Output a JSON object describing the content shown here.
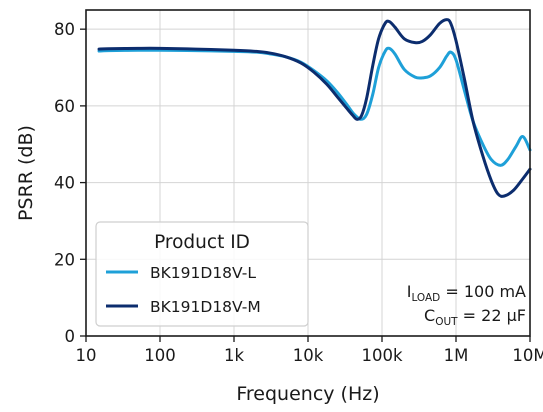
{
  "chart_data": {
    "type": "line",
    "xlabel": "Frequency (Hz)",
    "ylabel": "PSRR (dB)",
    "x_scale": "log",
    "xlim": [
      10,
      10000000
    ],
    "ylim": [
      0,
      85
    ],
    "x_ticks": [
      {
        "value": 10,
        "label": "10"
      },
      {
        "value": 100,
        "label": "100"
      },
      {
        "value": 1000,
        "label": "1k"
      },
      {
        "value": 10000,
        "label": "10k"
      },
      {
        "value": 100000,
        "label": "100k"
      },
      {
        "value": 1000000,
        "label": "1M"
      },
      {
        "value": 10000000,
        "label": "10M"
      }
    ],
    "y_ticks": [
      0,
      20,
      40,
      60,
      80
    ],
    "grid": true,
    "legend": {
      "title": "Product ID",
      "position": "bottom-left"
    },
    "annotations": {
      "load": {
        "main": "I",
        "sub": "LOAD",
        "rest": " = 100 mA"
      },
      "cout": {
        "main": "C",
        "sub": "OUT",
        "rest": " = 22 µF"
      }
    },
    "series": [
      {
        "name": "BK191D18V-L",
        "color": "#1ea0d8",
        "points": [
          [
            15,
            74.3
          ],
          [
            20,
            74.4
          ],
          [
            50,
            74.5
          ],
          [
            100,
            74.5
          ],
          [
            300,
            74.4
          ],
          [
            1000,
            74.2
          ],
          [
            2000,
            74.0
          ],
          [
            3000,
            73.6
          ],
          [
            5000,
            72.8
          ],
          [
            8000,
            71.4
          ],
          [
            12000,
            69.2
          ],
          [
            18000,
            66.5
          ],
          [
            25000,
            63.5
          ],
          [
            33000,
            60.5
          ],
          [
            42000,
            57.8
          ],
          [
            52000,
            56.5
          ],
          [
            62000,
            57.8
          ],
          [
            75000,
            63.0
          ],
          [
            90000,
            70.0
          ],
          [
            110000,
            74.2
          ],
          [
            125000,
            75.0
          ],
          [
            150000,
            73.5
          ],
          [
            200000,
            69.5
          ],
          [
            280000,
            67.5
          ],
          [
            350000,
            67.3
          ],
          [
            450000,
            67.8
          ],
          [
            600000,
            70.0
          ],
          [
            750000,
            73.0
          ],
          [
            850000,
            74.0
          ],
          [
            1000000,
            72.0
          ],
          [
            1300000,
            64.0
          ],
          [
            1700000,
            56.0
          ],
          [
            2300000,
            50.0
          ],
          [
            3000000,
            46.0
          ],
          [
            4000000,
            44.5
          ],
          [
            5000000,
            46.0
          ],
          [
            6500000,
            49.5
          ],
          [
            8000000,
            52.0
          ],
          [
            10000000,
            48.5
          ]
        ]
      },
      {
        "name": "BK191D18V-M",
        "color": "#0c2d6e",
        "points": [
          [
            15,
            74.8
          ],
          [
            20,
            74.9
          ],
          [
            50,
            75.0
          ],
          [
            100,
            75.0
          ],
          [
            300,
            74.8
          ],
          [
            1000,
            74.5
          ],
          [
            2000,
            74.2
          ],
          [
            3000,
            73.8
          ],
          [
            5000,
            72.8
          ],
          [
            8000,
            71.2
          ],
          [
            12000,
            68.8
          ],
          [
            18000,
            65.6
          ],
          [
            25000,
            62.3
          ],
          [
            33000,
            59.5
          ],
          [
            40000,
            57.6
          ],
          [
            46000,
            56.5
          ],
          [
            53000,
            57.5
          ],
          [
            62000,
            62.0
          ],
          [
            75000,
            70.5
          ],
          [
            90000,
            77.5
          ],
          [
            110000,
            81.5
          ],
          [
            125000,
            82.0
          ],
          [
            150000,
            80.5
          ],
          [
            200000,
            77.5
          ],
          [
            280000,
            76.5
          ],
          [
            350000,
            76.8
          ],
          [
            450000,
            78.5
          ],
          [
            600000,
            81.5
          ],
          [
            750000,
            82.5
          ],
          [
            850000,
            81.5
          ],
          [
            1000000,
            77.0
          ],
          [
            1300000,
            67.0
          ],
          [
            1700000,
            56.0
          ],
          [
            2300000,
            47.0
          ],
          [
            3000000,
            40.5
          ],
          [
            3700000,
            37.0
          ],
          [
            4500000,
            36.5
          ],
          [
            6000000,
            38.0
          ],
          [
            8000000,
            41.0
          ],
          [
            10000000,
            43.5
          ]
        ]
      }
    ]
  }
}
